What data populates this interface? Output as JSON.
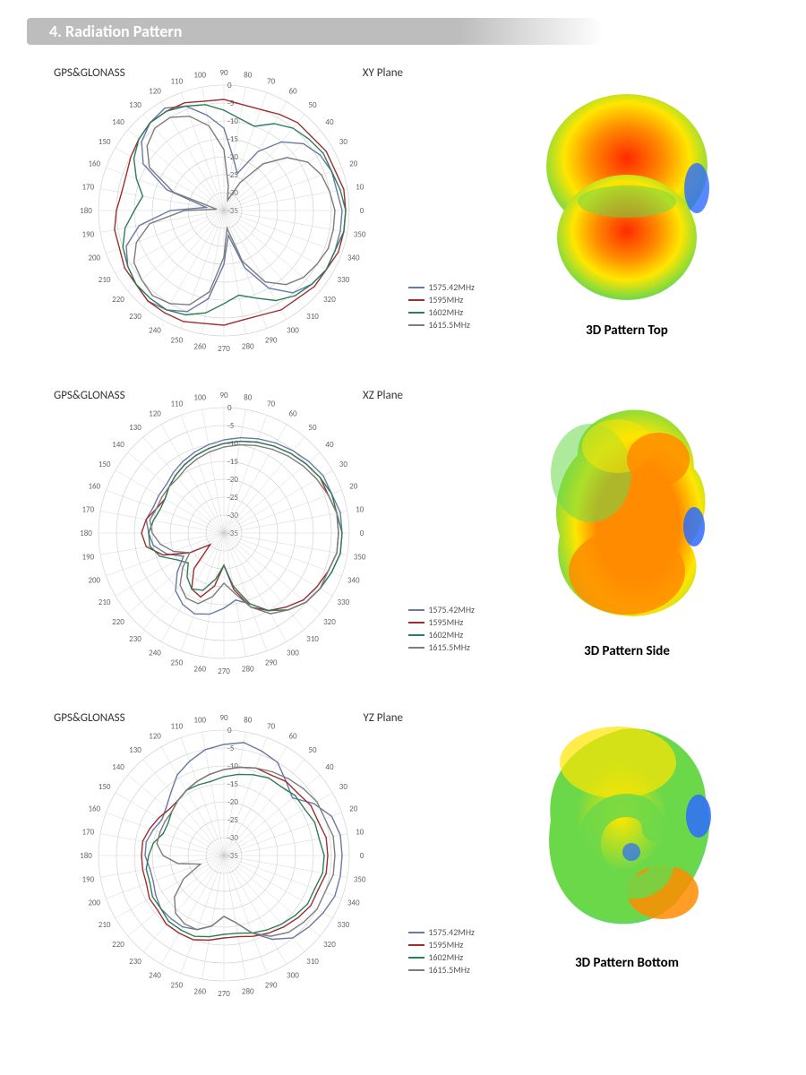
{
  "section_title": "4. Radiation Pattern",
  "antenna_label": "GPS&GLONASS",
  "radial": {
    "ticks": [
      0,
      -5,
      -10,
      -15,
      -20,
      -25,
      -30,
      -35
    ],
    "max": 0,
    "min": -35,
    "fontsize": 9,
    "label_color": "#666666"
  },
  "angular": {
    "step": 10,
    "fontsize": 9,
    "label_color": "#666666"
  },
  "grid_color": "#cccccc",
  "grid_width": 0.6,
  "background": "#ffffff",
  "series_meta": [
    {
      "name": "1575.42MHz",
      "color": "#6a78a6",
      "width": 1.4
    },
    {
      "name": "1595MHz",
      "color": "#9c2e2e",
      "width": 1.4
    },
    {
      "name": "1602MHz",
      "color": "#2e7d5a",
      "width": 1.4
    },
    {
      "name": "1615.5MHz",
      "color": "#7c7c7c",
      "width": 1.4
    }
  ],
  "polars": [
    {
      "plane": "XY Plane",
      "series": {
        "1575.42MHz": [
          -2,
          -3,
          -3,
          -4,
          -6,
          -10,
          -16,
          -24,
          -20,
          -12,
          -8,
          -4,
          -2,
          -3,
          -5,
          -9,
          -18,
          -30,
          -20,
          -11,
          -6,
          -4,
          -3,
          -2,
          -3,
          -5,
          -10,
          -20,
          -28,
          -18,
          -10,
          -5,
          -3,
          -2,
          -2,
          -2
        ],
        "1595MHz": [
          -1,
          -1,
          -2,
          -2,
          -3,
          -3,
          -4,
          -5,
          -5,
          -4,
          -4,
          -3,
          -3,
          -3,
          -4,
          -5,
          -6,
          -6,
          -5,
          -4,
          -4,
          -3,
          -3,
          -2,
          -2,
          -2,
          -3,
          -3,
          -4,
          -4,
          -3,
          -3,
          -2,
          -2,
          -1,
          -1
        ],
        "1602MHz": [
          -1,
          -2,
          -3,
          -3,
          -4,
          -5,
          -7,
          -10,
          -9,
          -7,
          -5,
          -4,
          -3,
          -3,
          -4,
          -6,
          -9,
          -12,
          -10,
          -7,
          -5,
          -4,
          -3,
          -3,
          -3,
          -4,
          -6,
          -9,
          -11,
          -9,
          -6,
          -4,
          -3,
          -2,
          -2,
          -1
        ],
        "1615.5MHz": [
          -4,
          -5,
          -6,
          -8,
          -12,
          -18,
          -26,
          -32,
          -28,
          -18,
          -11,
          -7,
          -5,
          -5,
          -7,
          -11,
          -20,
          -33,
          -24,
          -14,
          -9,
          -6,
          -5,
          -4,
          -5,
          -7,
          -12,
          -22,
          -30,
          -20,
          -12,
          -8,
          -6,
          -5,
          -4,
          -4
        ]
      }
    },
    {
      "plane": "XZ Plane",
      "series": {
        "1575.42MHz": [
          -2,
          -2,
          -3,
          -3,
          -4,
          -5,
          -6,
          -7,
          -8,
          -9,
          -10,
          -11,
          -12,
          -13,
          -14,
          -14,
          -14,
          -13,
          -14,
          -15,
          -18,
          -22,
          -18,
          -14,
          -12,
          -11,
          -12,
          -14,
          -16,
          -14,
          -10,
          -7,
          -5,
          -4,
          -3,
          -2
        ],
        "1595MHz": [
          -3,
          -3,
          -4,
          -4,
          -5,
          -6,
          -7,
          -8,
          -9,
          -10,
          -11,
          -12,
          -13,
          -14,
          -15,
          -16,
          -15,
          -13,
          -12,
          -13,
          -17,
          -24,
          -30,
          -22,
          -17,
          -16,
          -20,
          -26,
          -19,
          -13,
          -10,
          -8,
          -6,
          -5,
          -4,
          -3
        ],
        "1602MHz": [
          -2,
          -3,
          -3,
          -4,
          -5,
          -6,
          -7,
          -8,
          -9,
          -10,
          -11,
          -12,
          -13,
          -14,
          -15,
          -16,
          -16,
          -15,
          -14,
          -14,
          -16,
          -20,
          -22,
          -19,
          -17,
          -18,
          -22,
          -26,
          -20,
          -14,
          -10,
          -7,
          -5,
          -4,
          -3,
          -2
        ],
        "1615.5MHz": [
          -3,
          -3,
          -4,
          -5,
          -6,
          -7,
          -8,
          -9,
          -10,
          -11,
          -12,
          -13,
          -14,
          -15,
          -15,
          -15,
          -15,
          -14,
          -15,
          -17,
          -20,
          -24,
          -20,
          -16,
          -14,
          -14,
          -17,
          -21,
          -18,
          -13,
          -9,
          -7,
          -5,
          -4,
          -4,
          -3
        ]
      }
    },
    {
      "plane": "YZ Plane",
      "series": {
        "1575.42MHz": [
          -2,
          -2,
          -3,
          -6,
          -10,
          -8,
          -5,
          -4,
          -3,
          -4,
          -5,
          -7,
          -9,
          -12,
          -14,
          -15,
          -14,
          -13,
          -13,
          -14,
          -14,
          -13,
          -12,
          -12,
          -12,
          -13,
          -15,
          -18,
          -16,
          -12,
          -8,
          -5,
          -4,
          -3,
          -2,
          -2
        ],
        "1595MHz": [
          -6,
          -6,
          -7,
          -7,
          -8,
          -8,
          -9,
          -9,
          -10,
          -11,
          -12,
          -13,
          -14,
          -15,
          -15,
          -14,
          -13,
          -12,
          -12,
          -12,
          -12,
          -11,
          -11,
          -10,
          -10,
          -10,
          -11,
          -12,
          -12,
          -11,
          -10,
          -9,
          -8,
          -7,
          -7,
          -6
        ],
        "1602MHz": [
          -7,
          -8,
          -8,
          -9,
          -9,
          -10,
          -10,
          -11,
          -12,
          -13,
          -14,
          -14,
          -14,
          -15,
          -16,
          -17,
          -17,
          -15,
          -14,
          -13,
          -13,
          -12,
          -12,
          -11,
          -11,
          -11,
          -12,
          -13,
          -13,
          -12,
          -11,
          -10,
          -9,
          -8,
          -8,
          -7
        ],
        "1615.5MHz": [
          -4,
          -4,
          -5,
          -5,
          -6,
          -7,
          -8,
          -9,
          -10,
          -11,
          -12,
          -13,
          -14,
          -15,
          -16,
          -16,
          -16,
          -16,
          -18,
          -22,
          -28,
          -22,
          -17,
          -14,
          -13,
          -13,
          -15,
          -18,
          -16,
          -12,
          -9,
          -7,
          -6,
          -5,
          -5,
          -4
        ]
      }
    }
  ],
  "threeD": [
    {
      "caption": "3D Pattern Top"
    },
    {
      "caption": "3D Pattern Side"
    },
    {
      "caption": "3D Pattern Bottom"
    }
  ],
  "rainbow_colors": {
    "red": "#ff2a00",
    "orange": "#ff8c00",
    "yellow": "#ffe600",
    "green": "#6bd84a",
    "cyan": "#2ecfff",
    "blue": "#2e6bff"
  }
}
